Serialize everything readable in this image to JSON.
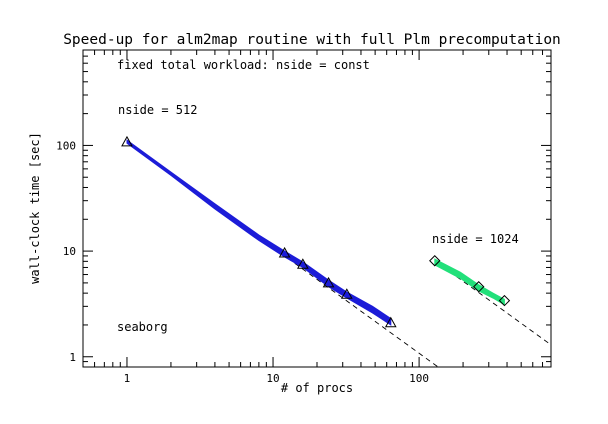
{
  "chart_data": {
    "type": "scatter",
    "title": "Speed-up for alm2map routine with full Plm precomputation",
    "subtitle": "fixed total workload: nside = const",
    "xlabel": "# of procs",
    "ylabel": "wall-clock time [sec]",
    "xscale": "log",
    "yscale": "log",
    "xlim": [
      0.5,
      800
    ],
    "ylim": [
      0.8,
      800
    ],
    "x_ticks": [
      1,
      10,
      100
    ],
    "y_ticks": [
      1,
      10,
      100
    ],
    "grid": false,
    "annotation": "seaborg",
    "series": [
      {
        "name": "nside = 512",
        "color": "#1c1cd8",
        "marker": "triangle",
        "x": [
          1,
          12,
          16,
          24,
          32,
          64
        ],
        "y": [
          108,
          9.6,
          7.5,
          5.0,
          3.9,
          2.1
        ],
        "band_x": [
          1,
          2,
          4,
          8,
          12,
          16,
          24,
          32,
          48,
          64
        ],
        "band_low": [
          105,
          52,
          25,
          12.6,
          8.8,
          7.0,
          4.6,
          3.6,
          2.6,
          2.0
        ],
        "band_high": [
          112,
          56,
          28,
          14.2,
          10.0,
          7.9,
          5.3,
          4.1,
          3.0,
          2.3
        ],
        "ideal_from": [
          1,
          108
        ],
        "ideal_to_x": 180
      },
      {
        "name": "nside = 1024",
        "color": "#22e07a",
        "marker": "diamond",
        "x": [
          128,
          256,
          384
        ],
        "y": [
          8.1,
          4.6,
          3.4
        ],
        "band_x": [
          128,
          192,
          256,
          320,
          384
        ],
        "band_low": [
          7.4,
          5.5,
          4.2,
          3.6,
          3.1
        ],
        "band_high": [
          8.4,
          6.3,
          4.8,
          4.0,
          3.5
        ],
        "ideal_from": [
          128,
          8.1
        ],
        "ideal_to_x": 800
      }
    ]
  }
}
